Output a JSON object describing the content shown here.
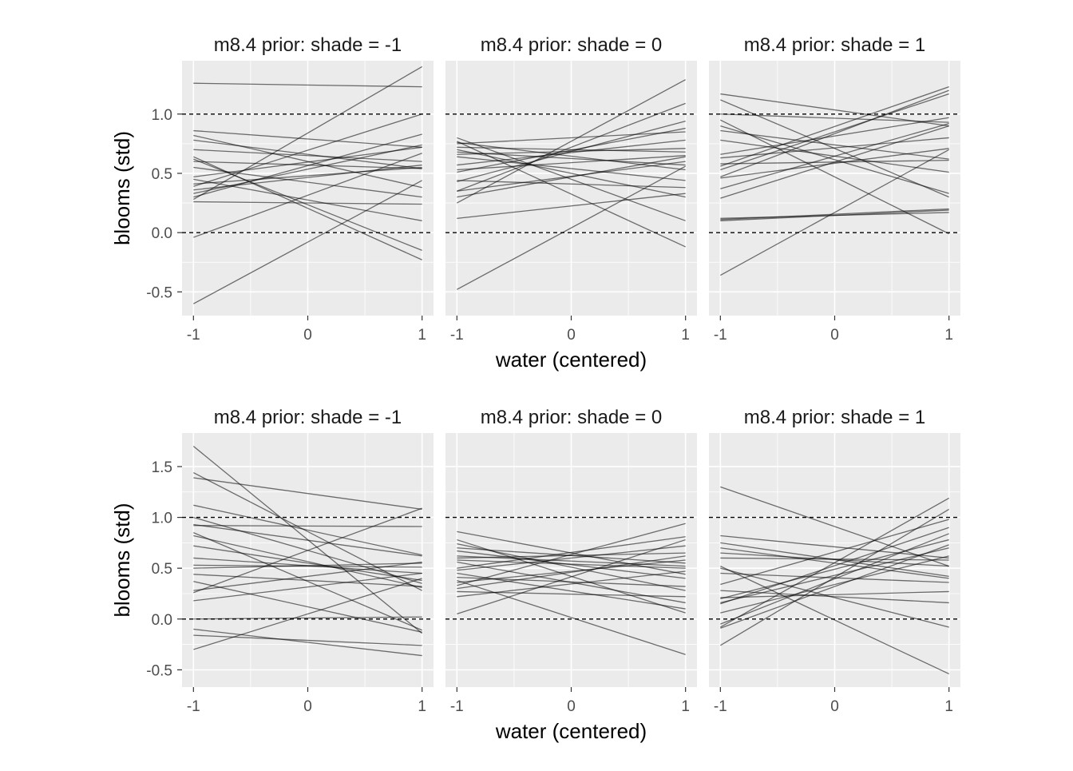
{
  "chart_data": [
    {
      "type": "line",
      "title": "m8.4 prior: shade = -1",
      "xlabel": "",
      "ylabel": "blooms (std)",
      "xlim": [
        -1.1,
        1.1
      ],
      "ylim": [
        -0.7,
        1.45
      ],
      "x_ticks": [
        -1,
        0,
        1
      ],
      "x_tick_labels": [
        "-1",
        "0",
        "1"
      ],
      "y_ticks": [
        -0.5,
        0.0,
        0.5,
        1.0
      ],
      "y_tick_labels": [
        "-0.5",
        "0.0",
        "0.5",
        "1.0"
      ],
      "reference_lines": [
        0,
        1
      ],
      "grid": true,
      "lines": [
        [
          -1,
          1.26,
          1,
          1.23
        ],
        [
          -1,
          -0.6,
          1,
          0.44
        ],
        [
          -1,
          0.28,
          1,
          1.4
        ],
        [
          -1,
          0.64,
          1,
          -0.23
        ],
        [
          -1,
          -0.04,
          1,
          0.67
        ],
        [
          -1,
          0.86,
          1,
          0.72
        ],
        [
          -1,
          0.39,
          1,
          1.0
        ],
        [
          -1,
          0.7,
          1,
          0.6
        ],
        [
          -1,
          0.3,
          1,
          0.83
        ],
        [
          -1,
          0.26,
          1,
          0.24
        ],
        [
          -1,
          0.6,
          1,
          0.54
        ],
        [
          -1,
          0.36,
          1,
          0.57
        ],
        [
          -1,
          0.82,
          1,
          0.38
        ],
        [
          -1,
          0.45,
          1,
          0.1
        ],
        [
          -1,
          0.47,
          1,
          0.72
        ],
        [
          -1,
          0.33,
          1,
          0.74
        ],
        [
          -1,
          0.62,
          1,
          -0.15
        ],
        [
          -1,
          0.78,
          1,
          0.54
        ],
        [
          -1,
          0.55,
          1,
          0.3
        ],
        [
          -1,
          0.41,
          1,
          0.55
        ]
      ]
    },
    {
      "type": "line",
      "title": "m8.4 prior: shade = 0",
      "xlabel": "water (centered)",
      "ylabel": "",
      "xlim": [
        -1.1,
        1.1
      ],
      "ylim": [
        -0.7,
        1.45
      ],
      "x_ticks": [
        -1,
        0,
        1
      ],
      "x_tick_labels": [
        "-1",
        "0",
        "1"
      ],
      "y_ticks": [
        -0.5,
        0.0,
        0.5,
        1.0
      ],
      "reference_lines": [
        0,
        1
      ],
      "grid": true,
      "lines": [
        [
          -1,
          -0.48,
          1,
          0.56
        ],
        [
          -1,
          0.25,
          1,
          1.29
        ],
        [
          -1,
          0.35,
          1,
          1.09
        ],
        [
          -1,
          0.77,
          1,
          -0.12
        ],
        [
          -1,
          0.8,
          1,
          0.1
        ],
        [
          -1,
          0.43,
          1,
          0.94
        ],
        [
          -1,
          0.53,
          1,
          0.65
        ],
        [
          -1,
          0.72,
          1,
          0.68
        ],
        [
          -1,
          0.75,
          1,
          0.85
        ],
        [
          -1,
          0.64,
          1,
          0.44
        ],
        [
          -1,
          0.35,
          1,
          0.6
        ],
        [
          -1,
          0.57,
          1,
          0.78
        ],
        [
          -1,
          0.66,
          1,
          0.71
        ],
        [
          -1,
          0.7,
          1,
          0.3
        ],
        [
          -1,
          0.76,
          1,
          0.53
        ],
        [
          -1,
          0.12,
          1,
          0.33
        ],
        [
          -1,
          0.44,
          1,
          0.38
        ],
        [
          -1,
          0.68,
          1,
          0.57
        ],
        [
          -1,
          0.51,
          1,
          0.88
        ],
        [
          -1,
          0.3,
          1,
          0.64
        ]
      ]
    },
    {
      "type": "line",
      "title": "m8.4 prior: shade = 1",
      "xlabel": "",
      "ylabel": "",
      "xlim": [
        -1.1,
        1.1
      ],
      "ylim": [
        -0.7,
        1.45
      ],
      "x_ticks": [
        -1,
        0,
        1
      ],
      "x_tick_labels": [
        "-1",
        "0",
        "1"
      ],
      "y_ticks": [
        -0.5,
        0.0,
        0.5,
        1.0
      ],
      "reference_lines": [
        0,
        1
      ],
      "grid": true,
      "lines": [
        [
          -1,
          -0.36,
          1,
          0.7
        ],
        [
          -1,
          1.17,
          1,
          0.9
        ],
        [
          -1,
          1.12,
          1,
          0.3
        ],
        [
          -1,
          0.95,
          1,
          -0.01
        ],
        [
          -1,
          0.11,
          1,
          0.2
        ],
        [
          -1,
          0.12,
          1,
          0.17
        ],
        [
          -1,
          0.56,
          1,
          1.23
        ],
        [
          -1,
          0.47,
          1,
          1.2
        ],
        [
          -1,
          0.53,
          1,
          1.17
        ],
        [
          -1,
          0.37,
          1,
          0.92
        ],
        [
          -1,
          0.9,
          1,
          0.33
        ],
        [
          -1,
          0.78,
          1,
          0.51
        ],
        [
          -1,
          0.63,
          1,
          0.8
        ],
        [
          -1,
          0.46,
          1,
          0.71
        ],
        [
          -1,
          1.0,
          1,
          0.93
        ],
        [
          -1,
          0.86,
          1,
          0.62
        ],
        [
          -1,
          0.58,
          1,
          0.61
        ],
        [
          -1,
          0.29,
          1,
          0.9
        ],
        [
          -1,
          0.66,
          1,
          0.97
        ],
        [
          -1,
          0.1,
          1,
          0.19
        ]
      ]
    },
    {
      "type": "line",
      "title": "m8.4 prior: shade = -1",
      "xlabel": "",
      "ylabel": "blooms (std)",
      "xlim": [
        -1.1,
        1.1
      ],
      "ylim": [
        -0.67,
        1.83
      ],
      "x_ticks": [
        -1,
        0,
        1
      ],
      "x_tick_labels": [
        "-1",
        "0",
        "1"
      ],
      "y_ticks": [
        -0.5,
        0.0,
        0.5,
        1.0,
        1.5
      ],
      "y_tick_labels": [
        "-0.5",
        "0.0",
        "0.5",
        "1.0",
        "1.5"
      ],
      "reference_lines": [
        0,
        1
      ],
      "grid": true,
      "lines": [
        [
          -1,
          1.7,
          1,
          -0.14
        ],
        [
          -1,
          1.44,
          1,
          0.28
        ],
        [
          -1,
          1.39,
          1,
          1.08
        ],
        [
          -1,
          1.12,
          1,
          0.63
        ],
        [
          -1,
          -0.3,
          1,
          0.4
        ],
        [
          -1,
          0.26,
          1,
          1.09
        ],
        [
          -1,
          1.0,
          1,
          0.35
        ],
        [
          -1,
          0.93,
          1,
          0.62
        ],
        [
          -1,
          0.85,
          1,
          -0.11
        ],
        [
          -1,
          0.92,
          1,
          0.91
        ],
        [
          -1,
          0.53,
          1,
          0.51
        ],
        [
          -1,
          0.44,
          1,
          0.32
        ],
        [
          -1,
          0.28,
          1,
          0.56
        ],
        [
          -1,
          0.18,
          1,
          0.45
        ],
        [
          -1,
          -0.1,
          1,
          -0.36
        ],
        [
          -1,
          -0.16,
          1,
          -0.26
        ],
        [
          -1,
          0.72,
          1,
          0.38
        ],
        [
          -1,
          0.6,
          1,
          0.45
        ],
        [
          -1,
          0.5,
          1,
          0.55
        ],
        [
          -1,
          0.82,
          1,
          0.31
        ],
        [
          -1,
          0.37,
          1,
          -0.13
        ],
        [
          -1,
          0.0,
          1,
          0.02
        ]
      ]
    },
    {
      "type": "line",
      "title": "m8.4 prior: shade = 0",
      "xlabel": "water (centered)",
      "ylabel": "",
      "xlim": [
        -1.1,
        1.1
      ],
      "ylim": [
        -0.67,
        1.83
      ],
      "x_ticks": [
        -1,
        0,
        1
      ],
      "x_tick_labels": [
        "-1",
        "0",
        "1"
      ],
      "y_ticks": [
        -0.5,
        0.0,
        0.5,
        1.0,
        1.5
      ],
      "reference_lines": [
        0,
        1
      ],
      "grid": true,
      "lines": [
        [
          -1,
          0.86,
          1,
          0.44
        ],
        [
          -1,
          0.78,
          1,
          0.06
        ],
        [
          -1,
          0.05,
          1,
          0.78
        ],
        [
          -1,
          0.38,
          1,
          -0.35
        ],
        [
          -1,
          0.33,
          1,
          0.94
        ],
        [
          -1,
          0.7,
          1,
          0.55
        ],
        [
          -1,
          0.6,
          1,
          0.65
        ],
        [
          -1,
          0.56,
          1,
          0.16
        ],
        [
          -1,
          0.48,
          1,
          0.72
        ],
        [
          -1,
          0.41,
          1,
          0.32
        ],
        [
          -1,
          0.3,
          1,
          0.62
        ],
        [
          -1,
          0.22,
          1,
          0.47
        ],
        [
          -1,
          0.74,
          1,
          0.28
        ],
        [
          -1,
          0.62,
          1,
          0.52
        ],
        [
          -1,
          0.45,
          1,
          0.1
        ],
        [
          -1,
          0.36,
          1,
          0.58
        ],
        [
          -1,
          0.67,
          1,
          0.4
        ],
        [
          -1,
          0.5,
          1,
          0.81
        ],
        [
          -1,
          0.27,
          1,
          0.22
        ],
        [
          -1,
          0.58,
          1,
          0.5
        ]
      ]
    },
    {
      "type": "line",
      "title": "m8.4 prior: shade = 1",
      "xlabel": "",
      "ylabel": "",
      "xlim": [
        -1.1,
        1.1
      ],
      "ylim": [
        -0.67,
        1.83
      ],
      "x_ticks": [
        -1,
        0,
        1
      ],
      "x_tick_labels": [
        "-1",
        "0",
        "1"
      ],
      "y_ticks": [
        -0.5,
        0.0,
        0.5,
        1.0,
        1.5
      ],
      "reference_lines": [
        0,
        1
      ],
      "grid": true,
      "lines": [
        [
          -1,
          1.3,
          1,
          0.52
        ],
        [
          -1,
          0.52,
          1,
          -0.54
        ],
        [
          -1,
          -0.26,
          1,
          1.08
        ],
        [
          -1,
          -0.08,
          1,
          1.19
        ],
        [
          -1,
          0.82,
          1,
          0.6
        ],
        [
          -1,
          0.7,
          1,
          0.4
        ],
        [
          -1,
          0.34,
          1,
          0.98
        ],
        [
          -1,
          0.15,
          1,
          0.9
        ],
        [
          -1,
          -0.05,
          1,
          0.84
        ],
        [
          -1,
          0.2,
          1,
          0.78
        ],
        [
          -1,
          0.28,
          1,
          0.16
        ],
        [
          -1,
          0.21,
          1,
          0.27
        ],
        [
          -1,
          0.5,
          1,
          -0.08
        ],
        [
          -1,
          0.16,
          1,
          0.7
        ],
        [
          -1,
          0.65,
          1,
          0.52
        ],
        [
          -1,
          0.45,
          1,
          0.36
        ],
        [
          -1,
          0.6,
          1,
          0.58
        ],
        [
          -1,
          0.75,
          1,
          0.42
        ],
        [
          -1,
          0.06,
          1,
          0.62
        ],
        [
          -1,
          -0.09,
          1,
          0.73
        ]
      ]
    }
  ]
}
